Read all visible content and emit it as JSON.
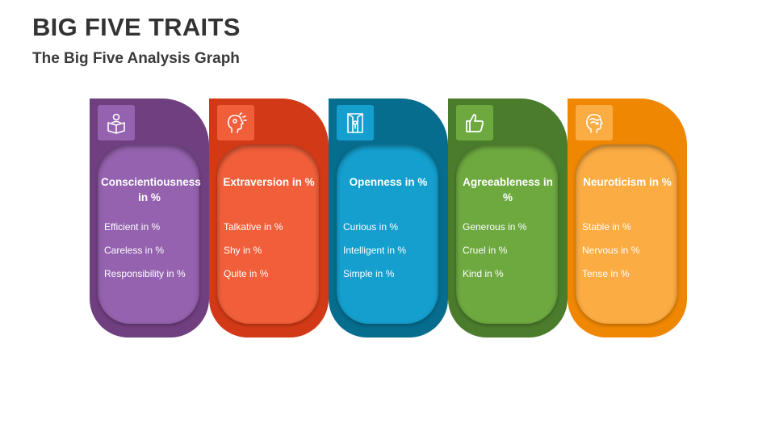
{
  "title": "BIG FIVE TRAITS",
  "subtitle": "The Big Five Analysis Graph",
  "cards": [
    {
      "heading": "Conscientiousness in %",
      "icon": "reading-person-icon",
      "items": [
        "Efficient in %",
        "Careless in %",
        "Responsibility in %"
      ],
      "color_dark": "#6f3f7f",
      "color_light": "#9462ae"
    },
    {
      "heading": "Extraversion in %",
      "icon": "head-ideas-icon",
      "items": [
        "Talkative in %",
        "Shy in %",
        "Quite in %"
      ],
      "color_dark": "#d23a17",
      "color_light": "#f05f3a"
    },
    {
      "heading": "Openness in %",
      "icon": "open-door-icon",
      "items": [
        "Curious in %",
        "Intelligent in %",
        "Simple in %"
      ],
      "color_dark": "#066d8e",
      "color_light": "#149fce"
    },
    {
      "heading": "Agreeableness in %",
      "icon": "thumbs-up-icon",
      "items": [
        "Generous in %",
        "Cruel in %",
        "Kind in %"
      ],
      "color_dark": "#4b7c2c",
      "color_light": "#6ea940"
    },
    {
      "heading": "Neuroticism in %",
      "icon": "anxious-face-icon",
      "items": [
        "Stable in %",
        "Nervous in %",
        "Tense in %"
      ],
      "color_dark": "#ef8703",
      "color_light": "#fbac43"
    }
  ]
}
